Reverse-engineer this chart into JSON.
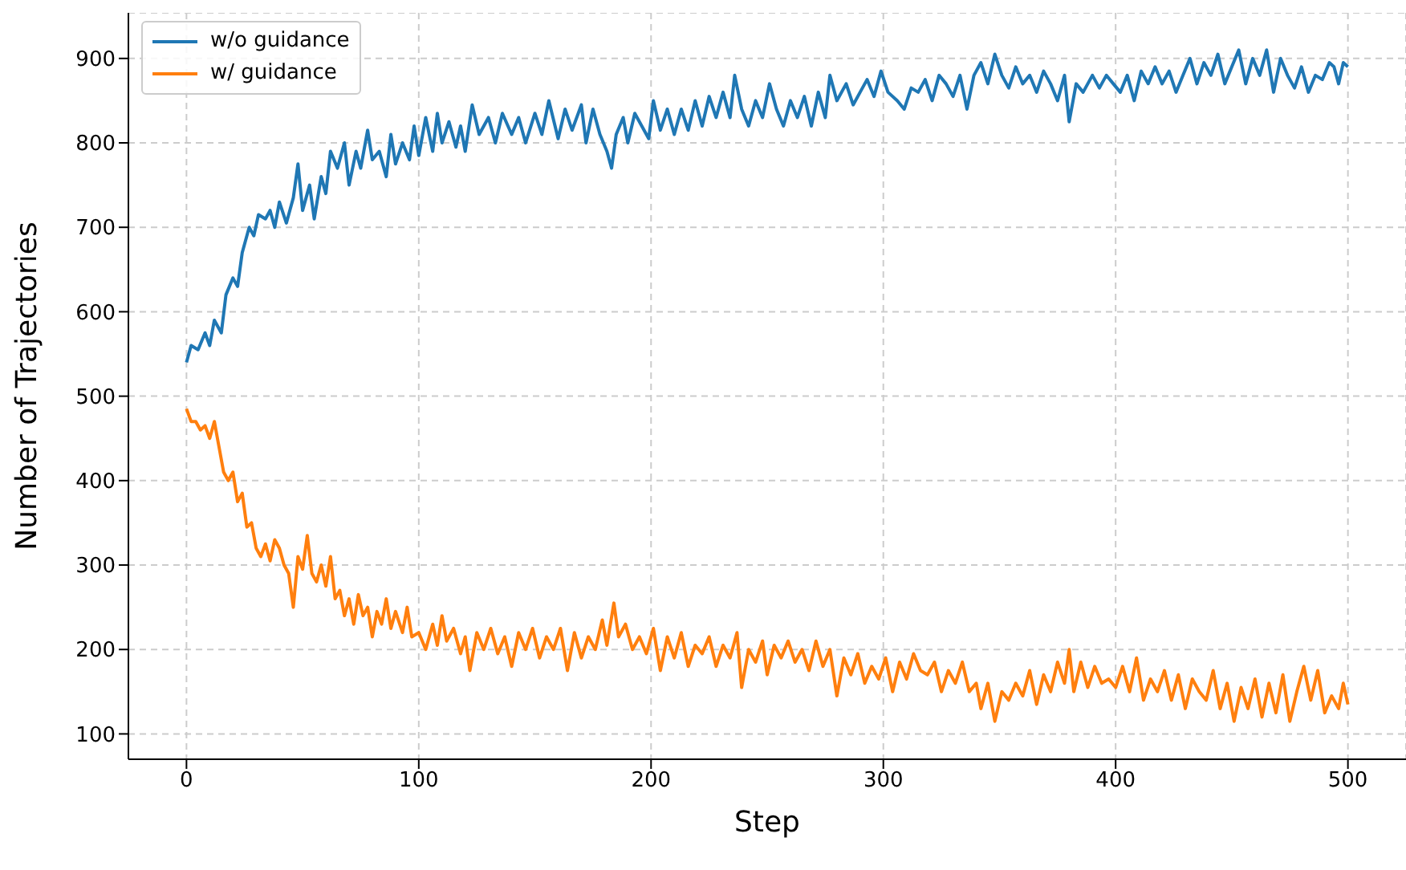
{
  "chart_data": {
    "type": "line",
    "xlabel": "Step",
    "ylabel": "Number of Trajectories",
    "xlim": [
      -25,
      525
    ],
    "ylim": [
      70,
      954
    ],
    "xticks": [
      0,
      100,
      200,
      300,
      400,
      500
    ],
    "yticks": [
      100,
      200,
      300,
      400,
      500,
      600,
      700,
      800,
      900
    ],
    "grid": true,
    "legend": "top left",
    "line_style": "solid",
    "marker": "none",
    "series": [
      {
        "name": "w/o guidance",
        "color": "#1f77b4",
        "x": [
          0,
          2,
          5,
          8,
          10,
          12,
          15,
          17,
          20,
          22,
          24,
          27,
          29,
          31,
          34,
          36,
          38,
          40,
          43,
          46,
          48,
          50,
          53,
          55,
          58,
          60,
          62,
          65,
          68,
          70,
          73,
          75,
          78,
          80,
          83,
          86,
          88,
          90,
          93,
          96,
          98,
          100,
          103,
          106,
          108,
          110,
          113,
          116,
          118,
          120,
          123,
          126,
          130,
          133,
          136,
          140,
          143,
          146,
          150,
          153,
          156,
          160,
          163,
          166,
          170,
          172,
          175,
          178,
          181,
          183,
          185,
          188,
          190,
          193,
          196,
          199,
          201,
          204,
          207,
          210,
          213,
          216,
          219,
          222,
          225,
          228,
          231,
          234,
          236,
          239,
          242,
          245,
          248,
          251,
          254,
          257,
          260,
          263,
          266,
          269,
          272,
          275,
          277,
          280,
          284,
          287,
          290,
          293,
          296,
          299,
          302,
          306,
          309,
          312,
          315,
          318,
          321,
          324,
          327,
          330,
          333,
          336,
          339,
          342,
          345,
          348,
          351,
          354,
          357,
          360,
          363,
          366,
          369,
          372,
          375,
          378,
          380,
          383,
          386,
          390,
          393,
          396,
          399,
          402,
          405,
          408,
          411,
          414,
          417,
          420,
          423,
          426,
          429,
          432,
          435,
          438,
          441,
          444,
          447,
          450,
          453,
          456,
          459,
          462,
          465,
          468,
          471,
          474,
          477,
          480,
          483,
          486,
          489,
          492,
          494,
          496,
          498,
          500
        ],
        "values": [
          540,
          560,
          555,
          575,
          560,
          590,
          575,
          620,
          640,
          630,
          670,
          700,
          690,
          715,
          710,
          720,
          700,
          730,
          705,
          735,
          775,
          720,
          750,
          710,
          760,
          740,
          790,
          770,
          800,
          750,
          790,
          770,
          815,
          780,
          790,
          760,
          810,
          775,
          800,
          780,
          820,
          785,
          830,
          790,
          835,
          800,
          825,
          795,
          820,
          790,
          845,
          810,
          830,
          800,
          835,
          810,
          830,
          800,
          835,
          810,
          850,
          805,
          840,
          815,
          845,
          800,
          840,
          810,
          790,
          770,
          810,
          830,
          800,
          835,
          820,
          805,
          850,
          815,
          840,
          810,
          840,
          815,
          850,
          820,
          855,
          830,
          860,
          830,
          880,
          840,
          820,
          850,
          830,
          870,
          840,
          820,
          850,
          830,
          855,
          820,
          860,
          830,
          880,
          850,
          870,
          845,
          860,
          875,
          855,
          885,
          860,
          850,
          840,
          865,
          860,
          875,
          850,
          880,
          870,
          855,
          880,
          840,
          880,
          895,
          870,
          905,
          880,
          865,
          890,
          870,
          880,
          860,
          885,
          870,
          850,
          880,
          825,
          870,
          860,
          880,
          865,
          880,
          870,
          860,
          880,
          850,
          885,
          870,
          890,
          870,
          885,
          860,
          880,
          900,
          870,
          895,
          880,
          905,
          870,
          890,
          910,
          870,
          900,
          880,
          910,
          860,
          900,
          880,
          865,
          890,
          860,
          880,
          875,
          895,
          890,
          870,
          895,
          890
        ]
      },
      {
        "name": "w/ guidance",
        "color": "#ff7f0e",
        "x": [
          0,
          2,
          4,
          6,
          8,
          10,
          12,
          14,
          16,
          18,
          20,
          22,
          24,
          26,
          28,
          30,
          32,
          34,
          36,
          38,
          40,
          42,
          44,
          46,
          48,
          50,
          52,
          54,
          56,
          58,
          60,
          62,
          64,
          66,
          68,
          70,
          72,
          74,
          76,
          78,
          80,
          82,
          84,
          86,
          88,
          90,
          93,
          95,
          97,
          100,
          103,
          106,
          108,
          110,
          112,
          115,
          118,
          120,
          122,
          125,
          128,
          131,
          134,
          137,
          140,
          143,
          146,
          149,
          152,
          155,
          158,
          161,
          164,
          167,
          170,
          173,
          176,
          179,
          181,
          184,
          186,
          189,
          192,
          195,
          198,
          201,
          204,
          207,
          210,
          213,
          216,
          219,
          222,
          225,
          228,
          231,
          234,
          237,
          239,
          242,
          245,
          248,
          250,
          253,
          256,
          259,
          262,
          265,
          268,
          271,
          274,
          277,
          280,
          283,
          286,
          289,
          292,
          295,
          298,
          301,
          304,
          307,
          310,
          313,
          316,
          319,
          322,
          325,
          328,
          331,
          334,
          337,
          340,
          342,
          345,
          348,
          351,
          354,
          357,
          360,
          363,
          366,
          369,
          372,
          375,
          378,
          380,
          382,
          385,
          388,
          391,
          394,
          397,
          400,
          403,
          406,
          409,
          412,
          415,
          418,
          421,
          424,
          427,
          430,
          433,
          436,
          439,
          442,
          445,
          448,
          451,
          454,
          457,
          460,
          463,
          466,
          469,
          472,
          475,
          478,
          481,
          484,
          487,
          490,
          493,
          496,
          498,
          500
        ],
        "values": [
          485,
          470,
          470,
          460,
          465,
          450,
          470,
          440,
          410,
          400,
          410,
          375,
          385,
          345,
          350,
          320,
          310,
          325,
          305,
          330,
          320,
          300,
          290,
          250,
          310,
          295,
          335,
          290,
          280,
          300,
          275,
          310,
          260,
          270,
          240,
          260,
          230,
          265,
          240,
          250,
          215,
          245,
          230,
          260,
          225,
          245,
          220,
          250,
          215,
          220,
          200,
          230,
          205,
          240,
          210,
          225,
          195,
          215,
          175,
          220,
          200,
          225,
          195,
          215,
          180,
          220,
          200,
          225,
          190,
          215,
          200,
          225,
          175,
          220,
          190,
          215,
          200,
          235,
          205,
          255,
          215,
          230,
          200,
          215,
          195,
          225,
          175,
          215,
          190,
          220,
          180,
          205,
          195,
          215,
          180,
          205,
          190,
          220,
          155,
          200,
          185,
          210,
          170,
          205,
          190,
          210,
          185,
          200,
          175,
          210,
          180,
          200,
          145,
          190,
          170,
          195,
          160,
          180,
          165,
          190,
          150,
          185,
          165,
          195,
          175,
          170,
          185,
          150,
          175,
          160,
          185,
          150,
          160,
          130,
          160,
          115,
          150,
          140,
          160,
          145,
          175,
          135,
          170,
          150,
          185,
          160,
          200,
          150,
          185,
          155,
          180,
          160,
          165,
          155,
          180,
          150,
          190,
          140,
          165,
          150,
          175,
          140,
          170,
          130,
          165,
          150,
          140,
          175,
          130,
          160,
          115,
          155,
          130,
          165,
          120,
          160,
          125,
          170,
          115,
          150,
          180,
          140,
          175,
          125,
          145,
          130,
          160,
          135
        ]
      }
    ]
  }
}
